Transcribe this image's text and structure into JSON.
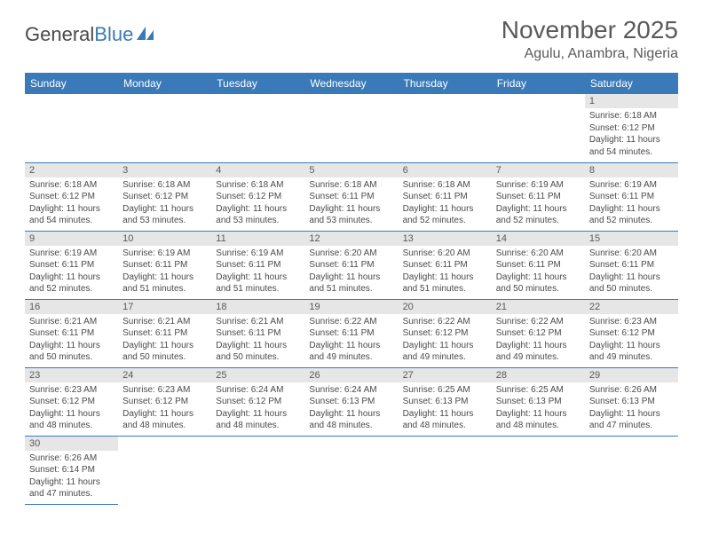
{
  "brand": {
    "word1": "General",
    "word2": "Blue"
  },
  "title": "November 2025",
  "location": "Agulu, Anambra, Nigeria",
  "day_headers": [
    "Sunday",
    "Monday",
    "Tuesday",
    "Wednesday",
    "Thursday",
    "Friday",
    "Saturday"
  ],
  "colors": {
    "header_bg": "#3a7ab8",
    "header_text": "#ffffff",
    "daynum_bg": "#e6e6e6",
    "border": "#3a7ab8",
    "text": "#4a4a4a"
  },
  "fonts": {
    "title_size": 28,
    "location_size": 16,
    "header_size": 12,
    "daynum_size": 11,
    "body_size": 10
  },
  "layout": {
    "columns": 7,
    "rows": 6,
    "first_weekday_index": 6,
    "days_in_month": 30
  },
  "days": {
    "1": {
      "sunrise": "6:18 AM",
      "sunset": "6:12 PM",
      "daylight": "11 hours and 54 minutes."
    },
    "2": {
      "sunrise": "6:18 AM",
      "sunset": "6:12 PM",
      "daylight": "11 hours and 54 minutes."
    },
    "3": {
      "sunrise": "6:18 AM",
      "sunset": "6:12 PM",
      "daylight": "11 hours and 53 minutes."
    },
    "4": {
      "sunrise": "6:18 AM",
      "sunset": "6:12 PM",
      "daylight": "11 hours and 53 minutes."
    },
    "5": {
      "sunrise": "6:18 AM",
      "sunset": "6:11 PM",
      "daylight": "11 hours and 53 minutes."
    },
    "6": {
      "sunrise": "6:18 AM",
      "sunset": "6:11 PM",
      "daylight": "11 hours and 52 minutes."
    },
    "7": {
      "sunrise": "6:19 AM",
      "sunset": "6:11 PM",
      "daylight": "11 hours and 52 minutes."
    },
    "8": {
      "sunrise": "6:19 AM",
      "sunset": "6:11 PM",
      "daylight": "11 hours and 52 minutes."
    },
    "9": {
      "sunrise": "6:19 AM",
      "sunset": "6:11 PM",
      "daylight": "11 hours and 52 minutes."
    },
    "10": {
      "sunrise": "6:19 AM",
      "sunset": "6:11 PM",
      "daylight": "11 hours and 51 minutes."
    },
    "11": {
      "sunrise": "6:19 AM",
      "sunset": "6:11 PM",
      "daylight": "11 hours and 51 minutes."
    },
    "12": {
      "sunrise": "6:20 AM",
      "sunset": "6:11 PM",
      "daylight": "11 hours and 51 minutes."
    },
    "13": {
      "sunrise": "6:20 AM",
      "sunset": "6:11 PM",
      "daylight": "11 hours and 51 minutes."
    },
    "14": {
      "sunrise": "6:20 AM",
      "sunset": "6:11 PM",
      "daylight": "11 hours and 50 minutes."
    },
    "15": {
      "sunrise": "6:20 AM",
      "sunset": "6:11 PM",
      "daylight": "11 hours and 50 minutes."
    },
    "16": {
      "sunrise": "6:21 AM",
      "sunset": "6:11 PM",
      "daylight": "11 hours and 50 minutes."
    },
    "17": {
      "sunrise": "6:21 AM",
      "sunset": "6:11 PM",
      "daylight": "11 hours and 50 minutes."
    },
    "18": {
      "sunrise": "6:21 AM",
      "sunset": "6:11 PM",
      "daylight": "11 hours and 50 minutes."
    },
    "19": {
      "sunrise": "6:22 AM",
      "sunset": "6:11 PM",
      "daylight": "11 hours and 49 minutes."
    },
    "20": {
      "sunrise": "6:22 AM",
      "sunset": "6:12 PM",
      "daylight": "11 hours and 49 minutes."
    },
    "21": {
      "sunrise": "6:22 AM",
      "sunset": "6:12 PM",
      "daylight": "11 hours and 49 minutes."
    },
    "22": {
      "sunrise": "6:23 AM",
      "sunset": "6:12 PM",
      "daylight": "11 hours and 49 minutes."
    },
    "23": {
      "sunrise": "6:23 AM",
      "sunset": "6:12 PM",
      "daylight": "11 hours and 48 minutes."
    },
    "24": {
      "sunrise": "6:23 AM",
      "sunset": "6:12 PM",
      "daylight": "11 hours and 48 minutes."
    },
    "25": {
      "sunrise": "6:24 AM",
      "sunset": "6:12 PM",
      "daylight": "11 hours and 48 minutes."
    },
    "26": {
      "sunrise": "6:24 AM",
      "sunset": "6:13 PM",
      "daylight": "11 hours and 48 minutes."
    },
    "27": {
      "sunrise": "6:25 AM",
      "sunset": "6:13 PM",
      "daylight": "11 hours and 48 minutes."
    },
    "28": {
      "sunrise": "6:25 AM",
      "sunset": "6:13 PM",
      "daylight": "11 hours and 48 minutes."
    },
    "29": {
      "sunrise": "6:26 AM",
      "sunset": "6:13 PM",
      "daylight": "11 hours and 47 minutes."
    },
    "30": {
      "sunrise": "6:26 AM",
      "sunset": "6:14 PM",
      "daylight": "11 hours and 47 minutes."
    }
  },
  "labels": {
    "sunrise": "Sunrise:",
    "sunset": "Sunset:",
    "daylight": "Daylight:"
  }
}
